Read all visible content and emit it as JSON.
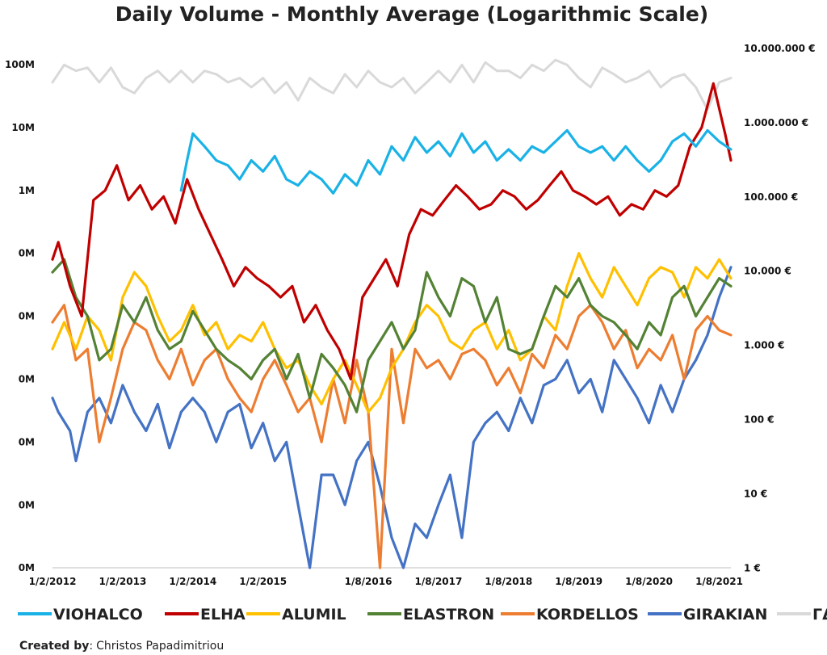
{
  "chart_data": {
    "type": "line",
    "title": "Daily Volume - Monthly Average (Logarithmic Scale)",
    "xlabel": "",
    "ylabel": "",
    "x_ticks": [
      "1/2/2012",
      "1/2/2013",
      "1/2/2014",
      "1/2/2015",
      "1/8/2016",
      "1/8/2017",
      "1/8/2018",
      "1/8/2019",
      "1/8/2020",
      "1/8/2021"
    ],
    "y_left_ticks": [
      "100M",
      "10M",
      "1M",
      "0M",
      "0M",
      "0M",
      "0M",
      "0M",
      "0M"
    ],
    "y_left_log_scale": true,
    "y_left_range": [
      1,
      1000000000
    ],
    "y_right_ticks": [
      "10.000.000 €",
      "1.000.000 €",
      "100.000 €",
      "10.000 €",
      "1.000 €",
      "100 €",
      "10 €",
      "1 €"
    ],
    "y_right_log_scale": true,
    "y_right_range": [
      1,
      10000000
    ],
    "x_range": [
      "2012-02",
      "2021-10"
    ],
    "grid": false,
    "legend_position": "bottom",
    "series": [
      {
        "name": "VIOHALCO",
        "color": "#1ab2e6",
        "axis": "left",
        "x": [
          "2013-12",
          "2014-01",
          "2014-02",
          "2014-04",
          "2014-06",
          "2014-08",
          "2014-10",
          "2014-12",
          "2015-02",
          "2015-04",
          "2015-06",
          "2015-08",
          "2015-10",
          "2015-12",
          "2016-02",
          "2016-04",
          "2016-06",
          "2016-08",
          "2016-10",
          "2016-12",
          "2017-02",
          "2017-04",
          "2017-06",
          "2017-08",
          "2017-10",
          "2017-12",
          "2018-02",
          "2018-04",
          "2018-06",
          "2018-08",
          "2018-10",
          "2018-12",
          "2019-02",
          "2019-04",
          "2019-06",
          "2019-08",
          "2019-10",
          "2019-12",
          "2020-02",
          "2020-04",
          "2020-06",
          "2020-08",
          "2020-10",
          "2020-12",
          "2021-02",
          "2021-04",
          "2021-06",
          "2021-08",
          "2021-10"
        ],
        "y": [
          1000000,
          3000000,
          8000000,
          5000000,
          3000000,
          2500000,
          1500000,
          3000000,
          2000000,
          3500000,
          1500000,
          1200000,
          2000000,
          1500000,
          900000,
          1800000,
          1200000,
          3000000,
          1800000,
          5000000,
          3000000,
          7000000,
          4000000,
          6000000,
          3500000,
          8000000,
          4000000,
          6000000,
          3000000,
          4500000,
          3000000,
          5000000,
          4000000,
          6000000,
          9000000,
          5000000,
          4000000,
          5000000,
          3000000,
          5000000,
          3000000,
          2000000,
          3000000,
          6000000,
          8000000,
          5000000,
          9000000,
          6000000,
          4500000
        ]
      },
      {
        "name": "ELHA",
        "color": "#c00000",
        "axis": "left",
        "x": [
          "2012-02",
          "2012-03",
          "2012-05",
          "2012-07",
          "2012-09",
          "2012-11",
          "2013-01",
          "2013-03",
          "2013-05",
          "2013-07",
          "2013-09",
          "2013-11",
          "2014-01",
          "2014-03",
          "2014-05",
          "2014-07",
          "2014-09",
          "2014-11",
          "2015-01",
          "2015-03",
          "2015-05",
          "2015-07",
          "2015-09",
          "2015-11",
          "2016-01",
          "2016-03",
          "2016-05",
          "2016-07",
          "2016-09",
          "2016-11",
          "2017-01",
          "2017-03",
          "2017-05",
          "2017-07",
          "2017-09",
          "2017-11",
          "2018-01",
          "2018-03",
          "2018-05",
          "2018-07",
          "2018-09",
          "2018-11",
          "2019-01",
          "2019-03",
          "2019-05",
          "2019-07",
          "2019-09",
          "2019-11",
          "2020-01",
          "2020-03",
          "2020-05",
          "2020-07",
          "2020-09",
          "2020-11",
          "2021-01",
          "2021-03",
          "2021-05",
          "2021-07",
          "2021-09",
          "2021-10"
        ],
        "y": [
          80000,
          150000,
          30000,
          10000,
          700000,
          1000000,
          2500000,
          700000,
          1200000,
          500000,
          800000,
          300000,
          1500000,
          500000,
          200000,
          80000,
          30000,
          60000,
          40000,
          30000,
          20000,
          30000,
          8000,
          15000,
          6000,
          3000,
          1000,
          20000,
          40000,
          80000,
          30000,
          200000,
          500000,
          400000,
          700000,
          1200000,
          800000,
          500000,
          600000,
          1000000,
          800000,
          500000,
          700000,
          1200000,
          2000000,
          1000000,
          800000,
          600000,
          800000,
          400000,
          600000,
          500000,
          1000000,
          800000,
          1200000,
          5000000,
          10000000,
          50000000,
          8000000,
          3000000
        ]
      },
      {
        "name": "ALUMIL",
        "color": "#ffc000",
        "axis": "left",
        "x": [
          "2012-02",
          "2012-04",
          "2012-06",
          "2012-08",
          "2012-10",
          "2012-12",
          "2013-02",
          "2013-04",
          "2013-06",
          "2013-08",
          "2013-10",
          "2013-12",
          "2014-02",
          "2014-04",
          "2014-06",
          "2014-08",
          "2014-10",
          "2014-12",
          "2015-02",
          "2015-04",
          "2015-06",
          "2015-08",
          "2015-10",
          "2015-12",
          "2016-02",
          "2016-04",
          "2016-06",
          "2016-08",
          "2016-10",
          "2016-12",
          "2017-02",
          "2017-04",
          "2017-06",
          "2017-08",
          "2017-10",
          "2017-12",
          "2018-02",
          "2018-04",
          "2018-06",
          "2018-08",
          "2018-10",
          "2018-12",
          "2019-02",
          "2019-04",
          "2019-06",
          "2019-08",
          "2019-10",
          "2019-12",
          "2020-02",
          "2020-04",
          "2020-06",
          "2020-08",
          "2020-10",
          "2020-12",
          "2021-02",
          "2021-04",
          "2021-06",
          "2021-08",
          "2021-10"
        ],
        "y": [
          3000,
          8000,
          3000,
          10000,
          6000,
          2000,
          20000,
          50000,
          30000,
          10000,
          4000,
          6000,
          15000,
          5000,
          8000,
          3000,
          5000,
          4000,
          8000,
          3000,
          1500,
          2000,
          800,
          400,
          1000,
          2000,
          800,
          300,
          500,
          1500,
          3000,
          8000,
          15000,
          10000,
          4000,
          3000,
          6000,
          8000,
          3000,
          6000,
          2000,
          3000,
          10000,
          6000,
          30000,
          100000,
          40000,
          20000,
          60000,
          30000,
          15000,
          40000,
          60000,
          50000,
          20000,
          60000,
          40000,
          80000,
          40000
        ]
      },
      {
        "name": "ELASTRON",
        "color": "#548235",
        "axis": "left",
        "x": [
          "2012-02",
          "2012-04",
          "2012-06",
          "2012-08",
          "2012-10",
          "2012-12",
          "2013-02",
          "2013-04",
          "2013-06",
          "2013-08",
          "2013-10",
          "2013-12",
          "2014-02",
          "2014-04",
          "2014-06",
          "2014-08",
          "2014-10",
          "2014-12",
          "2015-02",
          "2015-04",
          "2015-06",
          "2015-08",
          "2015-10",
          "2015-12",
          "2016-02",
          "2016-04",
          "2016-06",
          "2016-08",
          "2016-10",
          "2016-12",
          "2017-02",
          "2017-04",
          "2017-06",
          "2017-08",
          "2017-10",
          "2017-12",
          "2018-02",
          "2018-04",
          "2018-06",
          "2018-08",
          "2018-10",
          "2018-12",
          "2019-02",
          "2019-04",
          "2019-06",
          "2019-08",
          "2019-10",
          "2019-12",
          "2020-02",
          "2020-04",
          "2020-06",
          "2020-08",
          "2020-10",
          "2020-12",
          "2021-02",
          "2021-04",
          "2021-06",
          "2021-08",
          "2021-10"
        ],
        "y": [
          50000,
          80000,
          20000,
          10000,
          2000,
          3000,
          15000,
          8000,
          20000,
          6000,
          3000,
          4000,
          12000,
          6000,
          3000,
          2000,
          1500,
          1000,
          2000,
          3000,
          1000,
          2500,
          500,
          2500,
          1500,
          800,
          300,
          2000,
          4000,
          8000,
          3000,
          6000,
          50000,
          20000,
          10000,
          40000,
          30000,
          8000,
          20000,
          3000,
          2500,
          3000,
          10000,
          30000,
          20000,
          40000,
          15000,
          10000,
          8000,
          5000,
          3000,
          8000,
          5000,
          20000,
          30000,
          10000,
          20000,
          40000,
          30000
        ]
      },
      {
        "name": "KORDELLOS",
        "color": "#ed7d31",
        "axis": "left",
        "x": [
          "2012-02",
          "2012-04",
          "2012-06",
          "2012-08",
          "2012-10",
          "2012-12",
          "2013-02",
          "2013-04",
          "2013-06",
          "2013-08",
          "2013-10",
          "2013-12",
          "2014-02",
          "2014-04",
          "2014-06",
          "2014-08",
          "2014-10",
          "2014-12",
          "2015-02",
          "2015-04",
          "2015-06",
          "2015-08",
          "2015-10",
          "2015-12",
          "2016-02",
          "2016-04",
          "2016-06",
          "2016-08",
          "2016-10",
          "2016-12",
          "2017-02",
          "2017-04",
          "2017-06",
          "2017-08",
          "2017-10",
          "2017-12",
          "2018-02",
          "2018-04",
          "2018-06",
          "2018-08",
          "2018-10",
          "2018-12",
          "2019-02",
          "2019-04",
          "2019-06",
          "2019-08",
          "2019-10",
          "2019-12",
          "2020-02",
          "2020-04",
          "2020-06",
          "2020-08",
          "2020-10",
          "2020-12",
          "2021-02",
          "2021-04",
          "2021-06",
          "2021-08",
          "2021-10"
        ],
        "y": [
          8000,
          15000,
          2000,
          3000,
          100,
          500,
          3000,
          8000,
          6000,
          2000,
          1000,
          3000,
          800,
          2000,
          3000,
          1000,
          500,
          300,
          1000,
          2000,
          800,
          300,
          500,
          100,
          1000,
          200,
          2000,
          300,
          1,
          3000,
          200,
          3000,
          1500,
          2000,
          1000,
          2500,
          3000,
          2000,
          800,
          1500,
          600,
          2500,
          1500,
          5000,
          3000,
          10000,
          15000,
          8000,
          3000,
          6000,
          1500,
          3000,
          2000,
          5000,
          1000,
          6000,
          10000,
          6000,
          5000
        ]
      },
      {
        "name": "GIRAKIAN",
        "color": "#4472c4",
        "axis": "left",
        "x": [
          "2012-02",
          "2012-03",
          "2012-05",
          "2012-06",
          "2012-08",
          "2012-10",
          "2012-12",
          "2013-02",
          "2013-04",
          "2013-06",
          "2013-08",
          "2013-10",
          "2013-12",
          "2014-02",
          "2014-04",
          "2014-06",
          "2014-08",
          "2014-10",
          "2014-12",
          "2015-02",
          "2015-04",
          "2015-06",
          "2015-08",
          "2015-10",
          "2015-12",
          "2016-02",
          "2016-04",
          "2016-06",
          "2016-08",
          "2016-10",
          "2016-12",
          "2017-02",
          "2017-04",
          "2017-06",
          "2017-08",
          "2017-10",
          "2017-12",
          "2018-02",
          "2018-04",
          "2018-06",
          "2018-08",
          "2018-10",
          "2018-12",
          "2019-02",
          "2019-04",
          "2019-06",
          "2019-08",
          "2019-10",
          "2019-12",
          "2020-02",
          "2020-04",
          "2020-06",
          "2020-08",
          "2020-10",
          "2020-12",
          "2021-02",
          "2021-04",
          "2021-06",
          "2021-08",
          "2021-10"
        ],
        "y": [
          500,
          300,
          150,
          50,
          300,
          500,
          200,
          800,
          300,
          150,
          400,
          80,
          300,
          500,
          300,
          100,
          300,
          400,
          80,
          200,
          50,
          100,
          10,
          1,
          30,
          30,
          10,
          50,
          100,
          20,
          3,
          1,
          5,
          3,
          10,
          30,
          3,
          100,
          200,
          300,
          150,
          500,
          200,
          800,
          1000,
          2000,
          600,
          1000,
          300,
          2000,
          1000,
          500,
          200,
          800,
          300,
          1000,
          2000,
          5000,
          20000,
          60000
        ]
      },
      {
        "name": "ΓΔ",
        "color": "#d9d9d9",
        "axis": "right",
        "x": [
          "2012-02",
          "2012-04",
          "2012-06",
          "2012-08",
          "2012-10",
          "2012-12",
          "2013-02",
          "2013-04",
          "2013-06",
          "2013-08",
          "2013-10",
          "2013-12",
          "2014-02",
          "2014-04",
          "2014-06",
          "2014-08",
          "2014-10",
          "2014-12",
          "2015-02",
          "2015-04",
          "2015-06",
          "2015-08",
          "2015-10",
          "2015-12",
          "2016-02",
          "2016-04",
          "2016-06",
          "2016-08",
          "2016-10",
          "2016-12",
          "2017-02",
          "2017-04",
          "2017-06",
          "2017-08",
          "2017-10",
          "2017-12",
          "2018-02",
          "2018-04",
          "2018-06",
          "2018-08",
          "2018-10",
          "2018-12",
          "2019-02",
          "2019-04",
          "2019-06",
          "2019-08",
          "2019-10",
          "2019-12",
          "2020-02",
          "2020-04",
          "2020-06",
          "2020-08",
          "2020-10",
          "2020-12",
          "2021-02",
          "2021-04",
          "2021-06",
          "2021-08",
          "2021-10"
        ],
        "y": [
          3500000,
          6000000,
          5000000,
          5500000,
          3500000,
          5500000,
          3000000,
          2500000,
          4000000,
          5000000,
          3500000,
          5000000,
          3500000,
          5000000,
          4500000,
          3500000,
          4000000,
          3000000,
          4000000,
          2500000,
          3500000,
          2000000,
          4000000,
          3000000,
          2500000,
          4500000,
          3000000,
          5000000,
          3500000,
          3000000,
          4000000,
          2500000,
          3500000,
          5000000,
          3500000,
          6000000,
          3500000,
          6500000,
          5000000,
          5000000,
          4000000,
          6000000,
          5000000,
          7000000,
          6000000,
          4000000,
          3000000,
          5500000,
          4500000,
          3500000,
          4000000,
          5000000,
          3000000,
          4000000,
          4500000,
          3000000,
          1500000,
          3500000,
          4000000
        ]
      }
    ],
    "credit": {
      "label": "Created by",
      "separator": ":",
      "name": "Christos Papadimitriou"
    }
  }
}
